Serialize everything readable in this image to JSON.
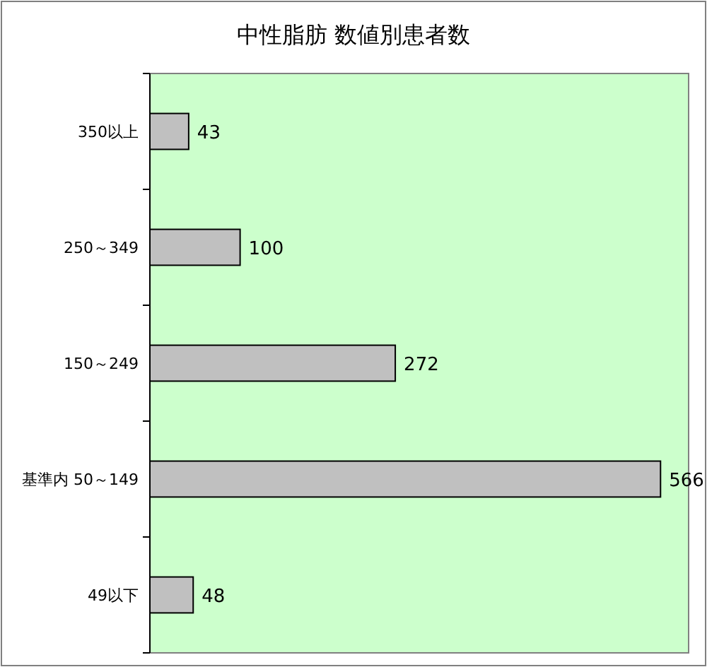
{
  "chart_data": {
    "type": "bar",
    "orientation": "horizontal",
    "title": "中性脂肪 数値別患者数",
    "categories": [
      "350以上",
      "250～349",
      "150～249",
      "基準内 50～149",
      "49以下"
    ],
    "values": [
      43,
      100,
      272,
      566,
      48
    ],
    "color": "#c0c0c0",
    "data_labels": true
  }
}
